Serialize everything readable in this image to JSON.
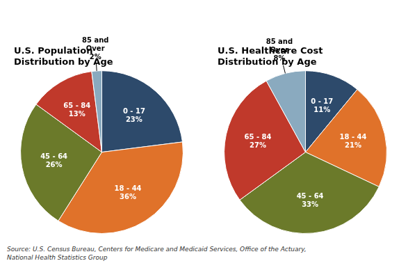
{
  "chart_data": [
    {
      "type": "pie",
      "title": "U.S. Population\nDistribution by Age",
      "categories": [
        "0 - 17",
        "18 - 44",
        "45 - 64",
        "65 - 84",
        "85 and\nOver"
      ],
      "values": [
        23,
        36,
        26,
        13,
        2
      ],
      "value_labels": [
        "23%",
        "36%",
        "26%",
        "13%",
        "2%"
      ],
      "colors": [
        "#2d4a6b",
        "#e0722a",
        "#6b7a2a",
        "#c0392b",
        "#8aaabf"
      ],
      "data_labels": true,
      "legend": false,
      "annotations": [
        "Source: U.S. Census Bureau, Centers for Medicare and Medicaid Services, Office of the Actuary,\nNational Health Statistics Group"
      ]
    },
    {
      "type": "pie",
      "title": "U.S. Healthcare Cost\nDistribution by Age",
      "categories": [
        "0 - 17",
        "18 - 44",
        "45 - 64",
        "65 - 84",
        "85 and\nOver"
      ],
      "values": [
        11,
        21,
        33,
        27,
        8
      ],
      "value_labels": [
        "11%",
        "21%",
        "33%",
        "27%",
        "8%"
      ],
      "colors": [
        "#2d4a6b",
        "#e0722a",
        "#6b7a2a",
        "#c0392b",
        "#8aaabf"
      ],
      "data_labels": true,
      "legend": false
    }
  ]
}
